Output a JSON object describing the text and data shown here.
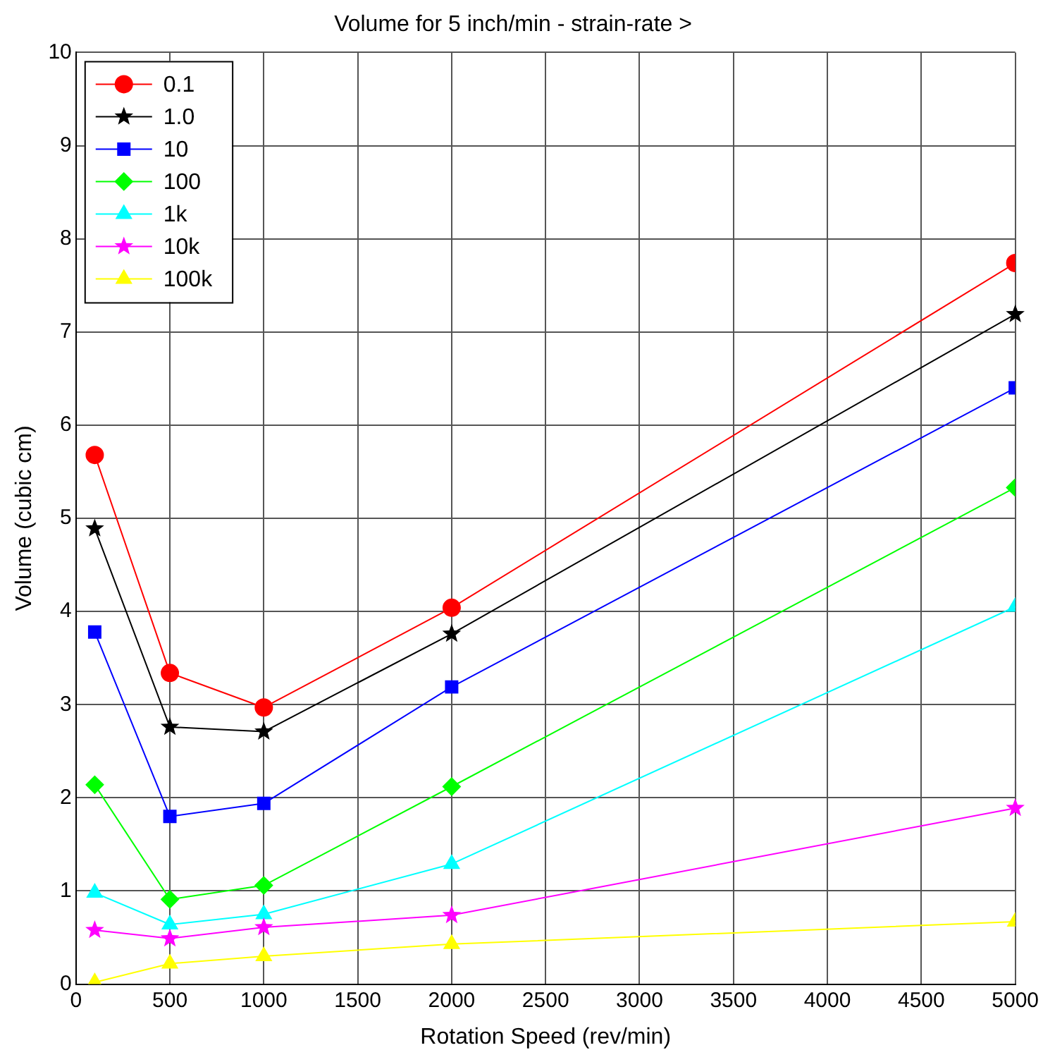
{
  "chart_data": {
    "type": "line",
    "title": "Volume for 5 inch/min - strain-rate >",
    "xlabel": "Rotation Speed (rev/min)",
    "ylabel": "Volume (cubic cm)",
    "x": [
      100,
      500,
      1000,
      2000,
      5000
    ],
    "series": [
      {
        "name": "0.1",
        "color": "#ff0000",
        "marker": "circle",
        "values": [
          5.68,
          3.34,
          2.97,
          4.04,
          7.74
        ]
      },
      {
        "name": "1.0",
        "color": "#000000",
        "marker": "star",
        "values": [
          4.89,
          2.76,
          2.71,
          3.76,
          7.19
        ]
      },
      {
        "name": "10",
        "color": "#0000ff",
        "marker": "square",
        "values": [
          3.78,
          1.8,
          1.94,
          3.19,
          6.4
        ]
      },
      {
        "name": "100",
        "color": "#00ff00",
        "marker": "diamond",
        "values": [
          2.14,
          0.91,
          1.06,
          2.12,
          5.33
        ]
      },
      {
        "name": "1k",
        "color": "#00ffff",
        "marker": "triangle",
        "values": [
          0.98,
          0.64,
          0.75,
          1.29,
          4.05
        ]
      },
      {
        "name": "10k",
        "color": "#ff00ff",
        "marker": "star",
        "values": [
          0.58,
          0.49,
          0.61,
          0.74,
          1.89
        ]
      },
      {
        "name": "100k",
        "color": "#ffff00",
        "marker": "triangle",
        "values": [
          0.02,
          0.22,
          0.3,
          0.43,
          0.67
        ]
      }
    ],
    "xlim": [
      0,
      5000
    ],
    "xticks": [
      0,
      500,
      1000,
      1500,
      2000,
      2500,
      3000,
      3500,
      4000,
      4500,
      5000
    ],
    "ylim": [
      0,
      10
    ],
    "yticks": [
      0,
      1,
      2,
      3,
      4,
      5,
      6,
      7,
      8,
      9,
      10
    ],
    "grid": true,
    "legend": "top left",
    "line_style": "solid"
  }
}
